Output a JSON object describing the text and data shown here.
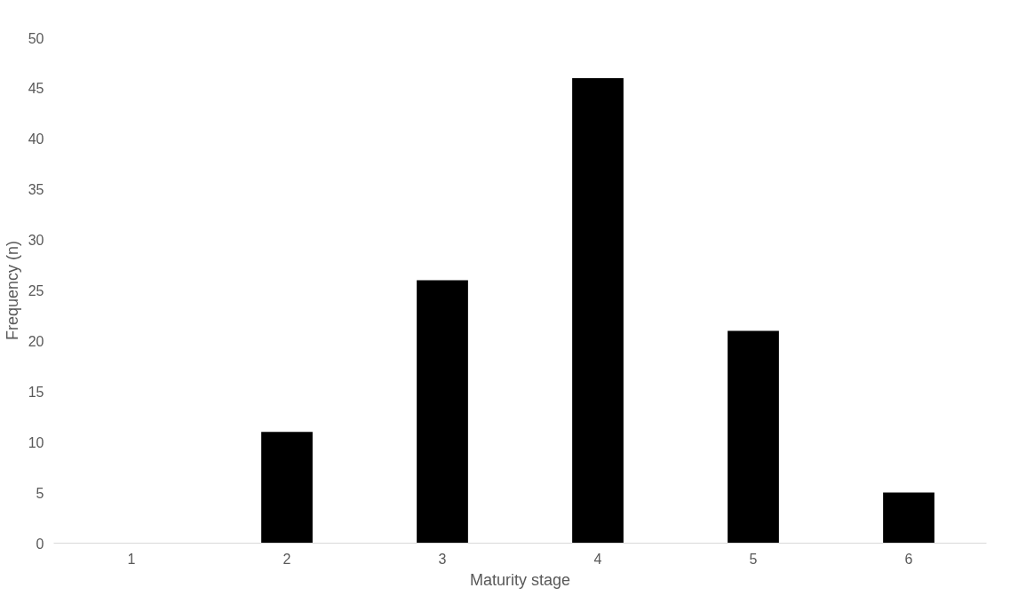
{
  "chart_data": {
    "type": "bar",
    "xlabel": "Maturity stage",
    "ylabel": "Frequency (n)",
    "categories": [
      "1",
      "2",
      "3",
      "4",
      "5",
      "6"
    ],
    "values": [
      0,
      11,
      26,
      46,
      21,
      5
    ],
    "color": "#000000",
    "ylim": [
      0,
      50
    ],
    "yticks": [
      0,
      5,
      10,
      15,
      20,
      25,
      30,
      35,
      40,
      45,
      50
    ],
    "grid": false
  }
}
